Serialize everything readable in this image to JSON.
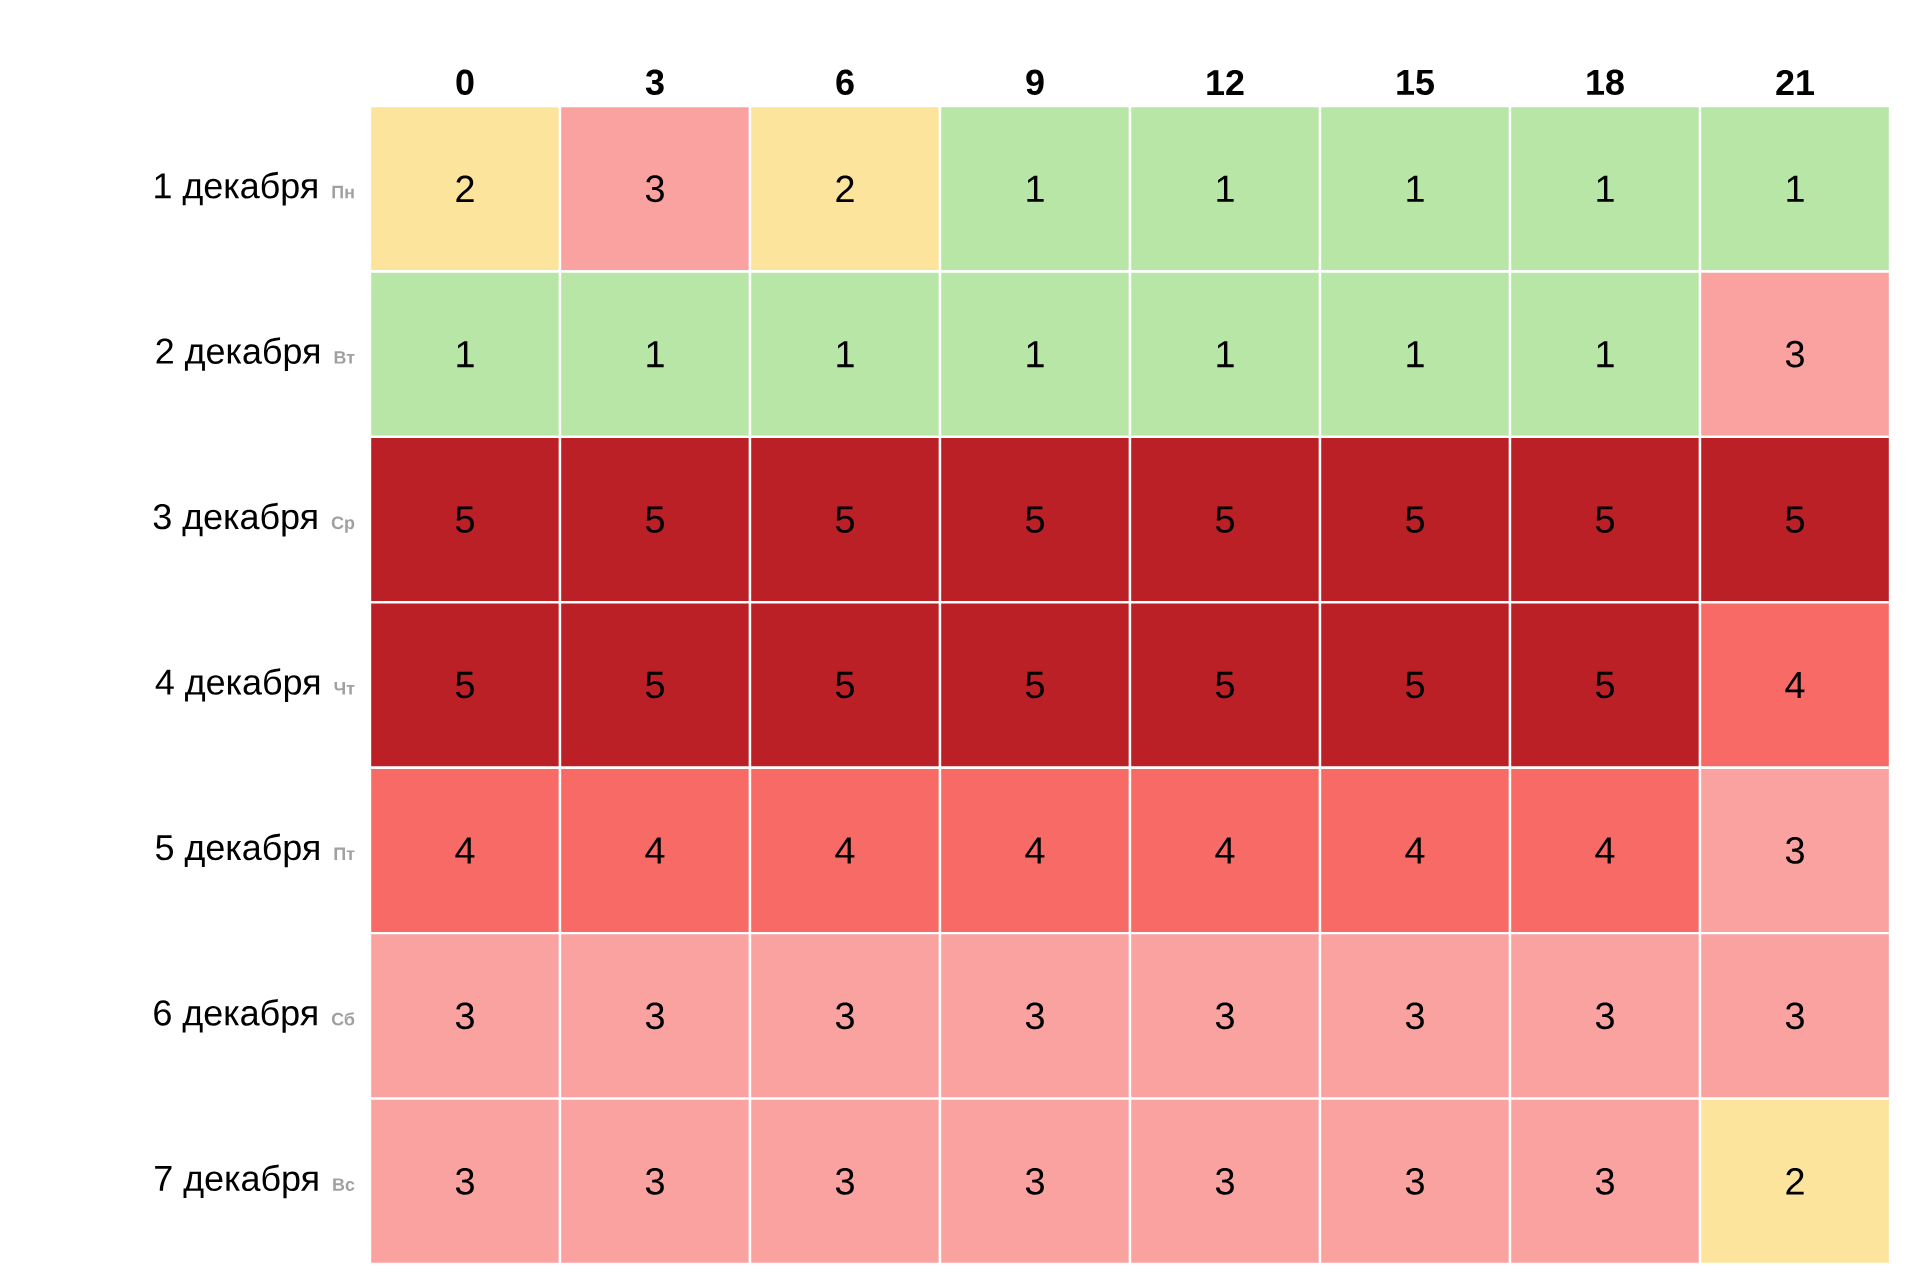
{
  "chart_data": {
    "type": "heatmap",
    "categories": [
      "0",
      "3",
      "6",
      "9",
      "12",
      "15",
      "18",
      "21"
    ],
    "y_categories": [
      "1 декабря",
      "2 декабря",
      "3 декабря",
      "4 декабря",
      "5 декабря",
      "6 декабря",
      "7 декабря"
    ],
    "y2_categories": [
      "Пн",
      "Вт",
      "Ср",
      "Чт",
      "Пт",
      "Сб",
      "Вс"
    ],
    "cells": [
      [
        2,
        3,
        2,
        1,
        1,
        1,
        1,
        1
      ],
      [
        1,
        1,
        1,
        1,
        1,
        1,
        1,
        3
      ],
      [
        5,
        5,
        5,
        5,
        5,
        5,
        5,
        5
      ],
      [
        5,
        5,
        5,
        5,
        5,
        5,
        5,
        4
      ],
      [
        4,
        4,
        4,
        4,
        4,
        4,
        4,
        3
      ],
      [
        3,
        3,
        3,
        3,
        3,
        3,
        3,
        3
      ],
      [
        3,
        3,
        3,
        3,
        3,
        3,
        3,
        2
      ]
    ],
    "colors": [
      "#b7e6a6",
      "#fde49d",
      "#f9a2a0",
      "#f86a66",
      "#bb2026"
    ],
    "data_labels": true
  }
}
